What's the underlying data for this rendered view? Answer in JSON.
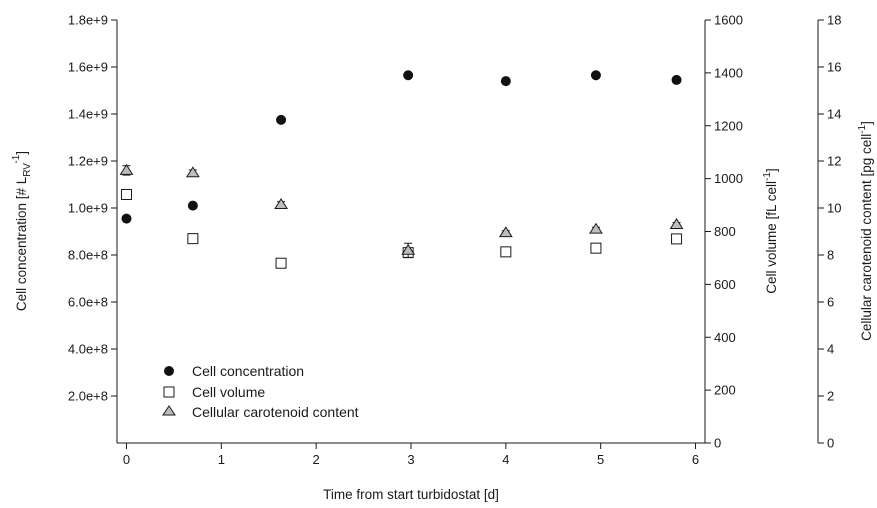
{
  "chart_data": {
    "type": "scatter",
    "title": "",
    "xlabel": "Time from start turbidostat [d]",
    "xlim": [
      -0.1,
      6.1
    ],
    "xticks": [
      "0",
      "1",
      "2",
      "3",
      "4",
      "5",
      "6"
    ],
    "xtick_values": [
      0,
      1,
      2,
      3,
      4,
      5,
      6
    ],
    "axes": {
      "left": {
        "label": "Cell concentration [# L",
        "label_sub": "RV",
        "label_sup": "-1",
        "label_end": "]",
        "ylim": [
          0,
          1800000000
        ],
        "ticks": [
          "2.0e+8",
          "4.0e+8",
          "6.0e+8",
          "8.0e+8",
          "1.0e+9",
          "1.2e+9",
          "1.4e+9",
          "1.6e+9",
          "1.8e+9"
        ],
        "tick_values": [
          200000000,
          400000000,
          600000000,
          800000000,
          1000000000,
          1200000000,
          1400000000,
          1600000000,
          1800000000
        ]
      },
      "right1": {
        "label": "Cell volume [fL cell",
        "label_sup": "-1",
        "label_end": "]",
        "ylim": [
          0,
          1600
        ],
        "ticks": [
          "0",
          "200",
          "400",
          "600",
          "800",
          "1000",
          "1200",
          "1400",
          "1600"
        ],
        "tick_values": [
          0,
          200,
          400,
          600,
          800,
          1000,
          1200,
          1400,
          1600
        ]
      },
      "right2": {
        "label": "Cellular carotenoid content [pg cell",
        "label_sup": "-1",
        "label_end": "]",
        "ylim": [
          0,
          18
        ],
        "ticks": [
          "0",
          "2",
          "4",
          "6",
          "8",
          "10",
          "12",
          "14",
          "16",
          "18"
        ],
        "tick_values": [
          0,
          2,
          4,
          6,
          8,
          10,
          12,
          14,
          16,
          18
        ]
      }
    },
    "series": [
      {
        "name": "Cell concentration",
        "axis": "left",
        "marker": "filled-circle",
        "x": [
          0,
          0.7,
          1.63,
          2.97,
          4.0,
          4.95,
          5.8
        ],
        "y": [
          955000000,
          1010000000,
          1375000000,
          1565000000,
          1540000000,
          1565000000,
          1545000000
        ],
        "err": [
          0,
          0,
          0,
          0,
          0,
          0,
          0
        ]
      },
      {
        "name": "Cell volume",
        "axis": "right1",
        "marker": "open-square",
        "x": [
          0,
          0.7,
          1.63,
          2.97,
          4.0,
          4.95,
          5.8
        ],
        "y": [
          940,
          773,
          680,
          720,
          723,
          737,
          772
        ],
        "err": [
          0,
          0,
          0,
          0,
          0,
          0,
          0
        ]
      },
      {
        "name": "Cellular carotenoid content",
        "axis": "right2",
        "marker": "gray-triangle",
        "x": [
          0,
          0.7,
          1.63,
          2.97,
          4.0,
          4.95,
          5.8
        ],
        "y": [
          11.6,
          11.5,
          10.15,
          8.2,
          8.95,
          9.1,
          9.3
        ],
        "err": [
          0.2,
          0.12,
          0.12,
          0.3,
          0.08,
          0.08,
          0.08
        ]
      }
    ],
    "legend": {
      "placement": "bottom-left",
      "entries": [
        "Cell concentration",
        "Cell volume",
        "Cellular carotenoid content"
      ]
    },
    "grid": false,
    "colors": {
      "axis": "#1a1a1a",
      "filled": "#111111",
      "triangle_fill": "#bdbdbd",
      "square_fill": "#ffffff"
    }
  }
}
